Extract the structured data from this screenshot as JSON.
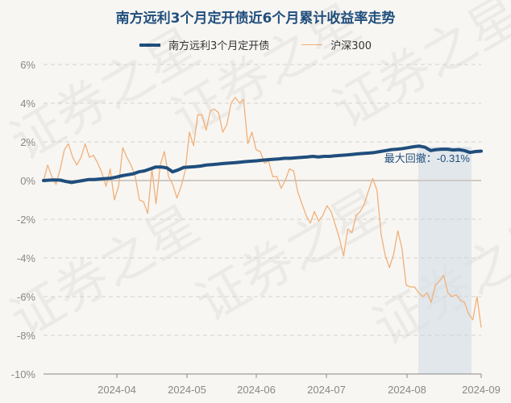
{
  "chart_data": {
    "type": "line",
    "title": "南方远利3个月定开债近6个月累计收益率走势",
    "xlabel": "",
    "ylabel": "",
    "ylim": [
      -10,
      6
    ],
    "yticks": [
      "6%",
      "4%",
      "2%",
      "0%",
      "-2%",
      "-4%",
      "-6%",
      "-8%",
      "-10%"
    ],
    "xticks": [
      "2024-04",
      "2024-05",
      "2024-06",
      "2024-07",
      "2024-08",
      "2024-09"
    ],
    "legend_position": "top",
    "grid": "horizontal dashed",
    "annotation": "最大回撤：-0.31%",
    "drawdown_region": {
      "start": "2024-08-02",
      "end": "2024-08-28"
    },
    "series": [
      {
        "name": "南方远利3个月定开债",
        "color": "#1f4e7d",
        "values": [
          0.0,
          0.02,
          0.03,
          0.02,
          -0.05,
          -0.1,
          -0.05,
          0.0,
          0.05,
          0.05,
          0.08,
          0.1,
          0.12,
          0.18,
          0.25,
          0.3,
          0.35,
          0.45,
          0.5,
          0.6,
          0.7,
          0.7,
          0.65,
          0.45,
          0.55,
          0.68,
          0.7,
          0.72,
          0.75,
          0.8,
          0.82,
          0.85,
          0.88,
          0.9,
          0.92,
          0.95,
          0.98,
          1.0,
          1.02,
          1.05,
          1.08,
          1.1,
          1.12,
          1.15,
          1.15,
          1.18,
          1.2,
          1.22,
          1.25,
          1.22,
          1.25,
          1.25,
          1.28,
          1.3,
          1.32,
          1.35,
          1.38,
          1.4,
          1.42,
          1.45,
          1.5,
          1.55,
          1.6,
          1.62,
          1.65,
          1.7,
          1.75,
          1.78,
          1.72,
          1.55,
          1.6,
          1.62,
          1.62,
          1.58,
          1.6,
          1.55,
          1.45,
          1.5,
          1.52
        ]
      },
      {
        "name": "沪深300",
        "color": "#f0b07a",
        "values": [
          0.0,
          0.8,
          0.2,
          -0.2,
          0.6,
          1.6,
          1.9,
          1.2,
          0.8,
          1.2,
          1.9,
          1.2,
          1.3,
          0.9,
          0.4,
          -0.3,
          0.6,
          -1.0,
          -0.3,
          1.7,
          1.2,
          0.8,
          0.2,
          -1.0,
          -1.1,
          -1.7,
          0.6,
          -1.2,
          0.8,
          1.5,
          0.2,
          -0.2,
          -0.9,
          -0.3,
          0.5,
          2.5,
          1.8,
          3.4,
          3.4,
          2.6,
          3.6,
          3.7,
          3.5,
          2.5,
          2.9,
          4.0,
          4.3,
          4.0,
          4.2,
          1.9,
          2.5,
          1.6,
          1.5,
          0.9,
          1.0,
          0.2,
          0.2,
          -0.4,
          0.0,
          0.6,
          0.5,
          -0.6,
          -1.2,
          -1.8,
          -2.2,
          -1.6,
          -2.1,
          -1.8,
          -1.3,
          -1.6,
          -2.3,
          -3.0,
          -3.9,
          -2.5,
          -2.7,
          -1.8,
          -1.6,
          -1.2,
          -0.5,
          0.1,
          -0.5,
          -2.8,
          -3.9,
          -4.5,
          -3.8,
          -2.6,
          -3.5,
          -5.4,
          -5.5,
          -5.5,
          -5.8,
          -6.0,
          -5.8,
          -6.3,
          -5.4,
          -5.2,
          -4.9,
          -5.8,
          -6.0,
          -5.9,
          -6.2,
          -6.3,
          -6.9,
          -7.2,
          -6.0,
          -7.6
        ]
      }
    ]
  },
  "title": "南方远利3个月定开债近6个月累计收益率走势",
  "legend": [
    {
      "label": "南方远利3个月定开债",
      "color": "#1f4e7d"
    },
    {
      "label": "沪深300",
      "color": "#f0b07a"
    }
  ],
  "annotation": "最大回撤：-0.31%",
  "watermark": "证券之星"
}
